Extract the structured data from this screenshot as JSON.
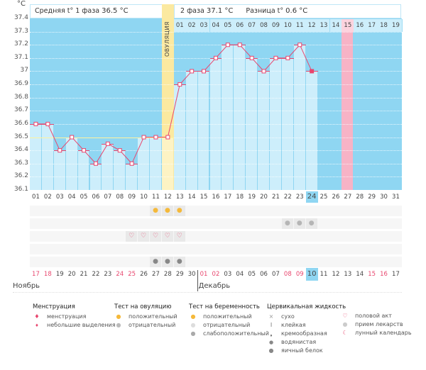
{
  "chart_data": {
    "type": "line",
    "unit": "°C",
    "y_ticks": [
      "37.4",
      "37.3",
      "37.2",
      "37.1",
      "37",
      "36.9",
      "36.8",
      "36.7",
      "36.6",
      "36.5",
      "36.4",
      "36.3",
      "36.2",
      "36.1"
    ],
    "ylim": [
      36.1,
      37.4
    ],
    "cycle_days": [
      "01",
      "02",
      "03",
      "04",
      "05",
      "06",
      "07",
      "08",
      "09",
      "10",
      "11",
      "12",
      "13",
      "14",
      "15",
      "16",
      "17",
      "18",
      "19",
      "20",
      "21",
      "22",
      "23",
      "24",
      "25",
      "26",
      "27",
      "28",
      "29",
      "30",
      "31"
    ],
    "temperatures": [
      36.6,
      36.6,
      36.4,
      36.5,
      36.4,
      36.3,
      36.45,
      36.4,
      36.3,
      36.5,
      36.5,
      36.5,
      36.9,
      37.0,
      37.0,
      37.1,
      37.2,
      37.2,
      37.1,
      37.0,
      37.1,
      37.1,
      37.2,
      37.0
    ],
    "coverline": 36.5,
    "today_index": 23,
    "ovulation_day_index": 11,
    "ovulation_label": "ОВУЛЯЦИЯ",
    "phase2_day_labels": [
      "01",
      "02",
      "03",
      "04",
      "05",
      "06",
      "07",
      "08",
      "09",
      "10",
      "11",
      "12",
      "13",
      "14",
      "15",
      "16",
      "17",
      "18",
      "19"
    ],
    "phase2_highlight_index": 14,
    "dates": [
      "17",
      "18",
      "19",
      "20",
      "21",
      "22",
      "23",
      "24",
      "25",
      "26",
      "27",
      "28",
      "29",
      "30",
      "01",
      "02",
      "03",
      "04",
      "05",
      "06",
      "07",
      "08",
      "09",
      "10",
      "11",
      "12",
      "13",
      "14",
      "15",
      "16",
      "17"
    ],
    "date_red": [
      0,
      1,
      7,
      8,
      14,
      15,
      21,
      22,
      28,
      29
    ],
    "months": [
      "Ноябрь",
      "Декабрь"
    ],
    "ovulation_test_positive_days": [
      10,
      11,
      12
    ],
    "pregnancy_test_weak_days": [
      21,
      22,
      23
    ],
    "intercourse_days": [
      8,
      9,
      10,
      11,
      12
    ],
    "cervical_watery_days": [
      10,
      11,
      12
    ]
  },
  "header": {
    "phase1": "Средняя t° 1 фаза",
    "phase1_value": "36.5 °C",
    "phase2": "2 фаза",
    "phase2_value": "37.1 °C",
    "diff": "Разница t°",
    "diff_value": "0.6 °C"
  },
  "colors": {
    "bg": "#8fd6f2",
    "bar": "#cdeefb",
    "line": "#e8466e",
    "ovulation": "#fbe9a0",
    "pink": "#f7b3c6"
  },
  "legend": {
    "menstruation": {
      "title": "Менструация",
      "items": [
        "менструация",
        "небольшие выделения"
      ]
    },
    "ovulation": {
      "title": "Тест на овуляцию",
      "items": [
        "положительный",
        "отрицательный"
      ]
    },
    "pregnancy": {
      "title": "Тест на беременность",
      "items": [
        "положительный",
        "отрицательный",
        "слабоположительный"
      ]
    },
    "cervical": {
      "title": "Цервикальная жидкость",
      "items": [
        "сухо",
        "клейкая",
        "кремообразная",
        "водянистая",
        "яичный белок"
      ]
    },
    "other": {
      "items": [
        "половой акт",
        "прием лекарств",
        "лунный календарь"
      ]
    }
  }
}
